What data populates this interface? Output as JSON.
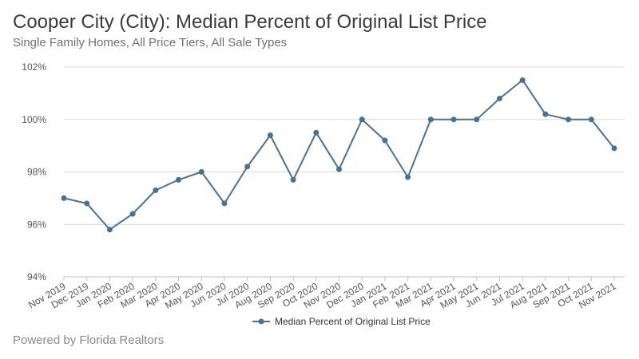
{
  "header": {
    "title": "Cooper City (City): Median Percent of Original List Price",
    "subtitle": "Single Family Homes, All Price Tiers, All Sale Types"
  },
  "footer": {
    "text": "Powered by Florida Realtors"
  },
  "chart_data": {
    "type": "line",
    "title": "Cooper City (City): Median Percent of Original List Price",
    "subtitle": "Single Family Homes, All Price Tiers, All Sale Types",
    "xlabel": "",
    "ylabel": "",
    "categories": [
      "Nov 2019",
      "Dec 2019",
      "Jan 2020",
      "Feb 2020",
      "Mar 2020",
      "Apr 2020",
      "May 2020",
      "Jun 2020",
      "Jul 2020",
      "Aug 2020",
      "Sep 2020",
      "Oct 2020",
      "Nov 2020",
      "Dec 2020",
      "Jan 2021",
      "Feb 2021",
      "Mar 2021",
      "Apr 2021",
      "May 2021",
      "Jun 2021",
      "Jul 2021",
      "Aug 2021",
      "Sep 2021",
      "Oct 2021",
      "Nov 2021"
    ],
    "series": [
      {
        "name": "Median Percent of Original List Price",
        "values": [
          97.0,
          96.8,
          95.8,
          96.4,
          97.3,
          97.7,
          98.0,
          96.8,
          98.2,
          99.4,
          97.7,
          99.5,
          98.1,
          100.0,
          99.2,
          97.8,
          100.0,
          100.0,
          100.0,
          100.8,
          101.5,
          100.2,
          100.0,
          100.0,
          98.9
        ]
      }
    ],
    "ylim": [
      94,
      102
    ],
    "yticks": [
      94,
      96,
      98,
      100,
      102
    ],
    "ytick_labels": [
      "94%",
      "96%",
      "98%",
      "100%",
      "102%"
    ],
    "grid": true,
    "legend": "bottom-center",
    "colors": {
      "line": "#4b7191",
      "grid": "#d9d9d9",
      "axis": "#bfbfbf"
    }
  }
}
